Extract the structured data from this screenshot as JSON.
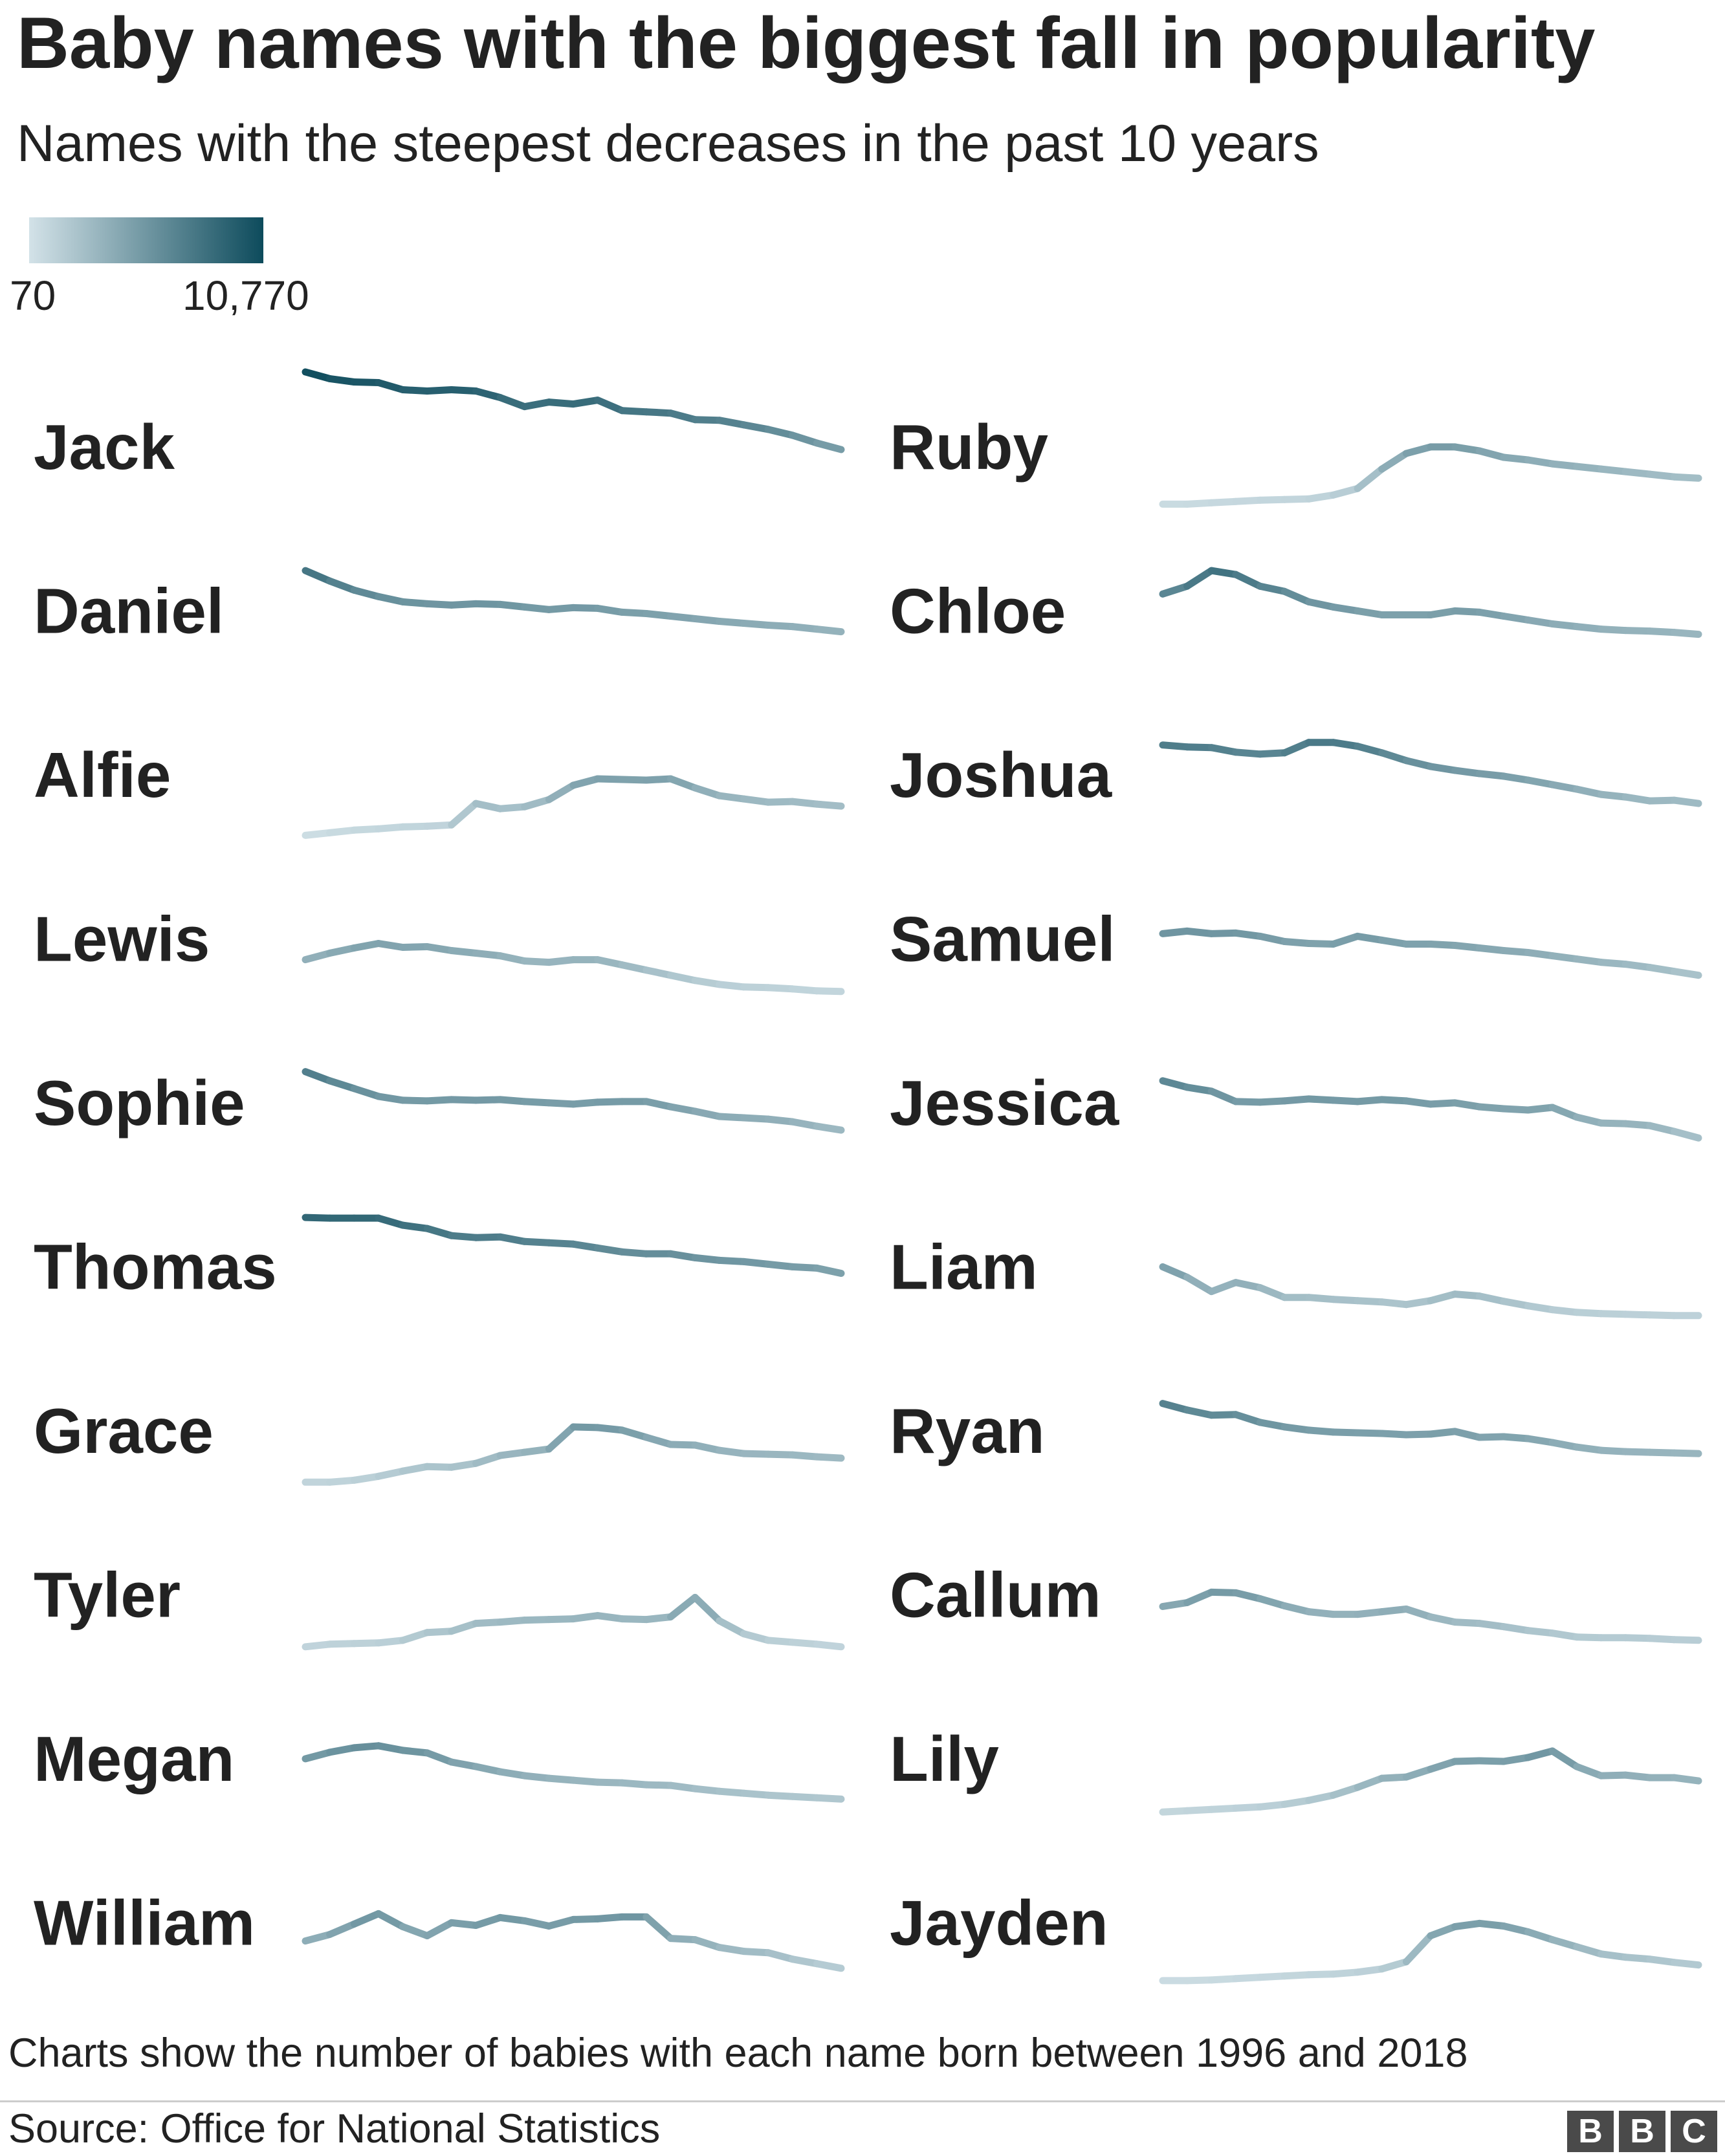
{
  "title": "Baby names with the biggest fall in popularity",
  "subtitle": "Names with the steepest decreases in the past 10 years",
  "legend": {
    "min_label": "70",
    "max_label": "10,770",
    "min_value": 70,
    "max_value": 10770,
    "color_low": "#d3e2e8",
    "color_high": "#0d4b5c"
  },
  "footnote": "Charts show the number of babies with each name born between 1996 and 2018",
  "source": "Source: Office for National Statistics",
  "logo": [
    "B",
    "B",
    "C"
  ],
  "chart_data": {
    "type": "line",
    "x": [
      1996,
      1997,
      1998,
      1999,
      2000,
      2001,
      2002,
      2003,
      2004,
      2005,
      2006,
      2007,
      2008,
      2009,
      2010,
      2011,
      2012,
      2013,
      2014,
      2015,
      2016,
      2017,
      2018
    ],
    "ylim": [
      70,
      10770
    ],
    "color_scale": "shared",
    "series": [
      {
        "name": "Jack",
        "values": [
          10770,
          10250,
          10000,
          9950,
          9400,
          9300,
          9400,
          9300,
          8800,
          8100,
          8450,
          8300,
          8600,
          7800,
          7700,
          7600,
          7100,
          7050,
          6700,
          6350,
          5900,
          5300,
          4800
        ]
      },
      {
        "name": "Ruby",
        "values": [
          600,
          600,
          700,
          800,
          900,
          950,
          1000,
          1300,
          1800,
          3300,
          4500,
          5000,
          5000,
          4700,
          4200,
          4000,
          3700,
          3500,
          3300,
          3100,
          2900,
          2700,
          2600
        ]
      },
      {
        "name": "Daniel",
        "values": [
          8100,
          7300,
          6600,
          6100,
          5700,
          5550,
          5450,
          5550,
          5500,
          5300,
          5100,
          5250,
          5200,
          4900,
          4800,
          4600,
          4400,
          4200,
          4050,
          3900,
          3800,
          3600,
          3400
        ]
      },
      {
        "name": "Chloe",
        "values": [
          6300,
          6900,
          8100,
          7800,
          6900,
          6500,
          5700,
          5300,
          5000,
          4700,
          4700,
          4700,
          5000,
          4900,
          4600,
          4300,
          4000,
          3800,
          3600,
          3500,
          3450,
          3350,
          3200
        ]
      },
      {
        "name": "Alfie",
        "values": [
          350,
          550,
          750,
          850,
          1000,
          1050,
          1150,
          2800,
          2400,
          2550,
          3100,
          4200,
          4700,
          4650,
          4600,
          4700,
          4000,
          3400,
          3150,
          2900,
          2950,
          2750,
          2600
        ]
      },
      {
        "name": "Joshua",
        "values": [
          7300,
          7150,
          7100,
          6750,
          6600,
          6700,
          7500,
          7500,
          7200,
          6700,
          6100,
          5650,
          5350,
          5100,
          4900,
          4600,
          4250,
          3900,
          3500,
          3300,
          3000,
          3050,
          2800
        ]
      },
      {
        "name": "Lewis",
        "values": [
          3400,
          3900,
          4300,
          4650,
          4350,
          4400,
          4100,
          3900,
          3700,
          3300,
          3200,
          3400,
          3400,
          3000,
          2600,
          2200,
          1800,
          1500,
          1300,
          1250,
          1150,
          1000,
          950
        ]
      },
      {
        "name": "Samuel",
        "values": [
          5400,
          5600,
          5400,
          5450,
          5200,
          4800,
          4650,
          4600,
          5200,
          4900,
          4600,
          4600,
          4500,
          4300,
          4100,
          3950,
          3700,
          3450,
          3200,
          3050,
          2800,
          2500,
          2200
        ]
      },
      {
        "name": "Sophie",
        "values": [
          7400,
          6700,
          6100,
          5500,
          5200,
          5150,
          5250,
          5200,
          5250,
          5100,
          5000,
          4900,
          5050,
          5100,
          5100,
          4700,
          4350,
          3950,
          3850,
          3750,
          3550,
          3200,
          2900
        ]
      },
      {
        "name": "Jessica",
        "values": [
          6700,
          6200,
          5900,
          5100,
          5050,
          5150,
          5300,
          5200,
          5100,
          5250,
          5150,
          4900,
          5000,
          4700,
          4550,
          4450,
          4650,
          3900,
          3450,
          3400,
          3250,
          2800,
          2300
        ]
      },
      {
        "name": "Thomas",
        "values": [
          8800,
          8750,
          8750,
          8750,
          8200,
          7950,
          7400,
          7250,
          7300,
          6950,
          6850,
          6750,
          6450,
          6150,
          6000,
          6000,
          5700,
          5500,
          5400,
          5200,
          5000,
          4900,
          4500
        ]
      },
      {
        "name": "Liam",
        "values": [
          5000,
          4200,
          3100,
          3800,
          3400,
          2650,
          2650,
          2500,
          2400,
          2300,
          2100,
          2400,
          2900,
          2750,
          2350,
          2000,
          1700,
          1500,
          1400,
          1350,
          1300,
          1250,
          1250
        ]
      },
      {
        "name": "Grace",
        "values": [
          1050,
          1050,
          1200,
          1500,
          1900,
          2250,
          2200,
          2500,
          3100,
          3350,
          3600,
          5300,
          5250,
          5050,
          4500,
          3950,
          3900,
          3500,
          3250,
          3200,
          3150,
          3000,
          2900
        ]
      },
      {
        "name": "Ryan",
        "values": [
          7100,
          6600,
          6200,
          6250,
          5650,
          5300,
          5050,
          4900,
          4850,
          4800,
          4700,
          4750,
          4950,
          4500,
          4550,
          4400,
          4100,
          3750,
          3500,
          3400,
          3350,
          3300,
          3250
        ]
      },
      {
        "name": "Tyler",
        "values": [
          1000,
          1200,
          1250,
          1300,
          1500,
          2100,
          2200,
          2800,
          2900,
          3050,
          3100,
          3150,
          3400,
          3150,
          3100,
          3300,
          4800,
          3000,
          2000,
          1500,
          1350,
          1200,
          1000
        ]
      },
      {
        "name": "Callum",
        "values": [
          4100,
          4400,
          5200,
          5150,
          4700,
          4150,
          3700,
          3500,
          3500,
          3700,
          3900,
          3300,
          2900,
          2800,
          2550,
          2250,
          2050,
          1750,
          1700,
          1700,
          1650,
          1550,
          1500
        ]
      },
      {
        "name": "Megan",
        "values": [
          5000,
          5500,
          5850,
          6000,
          5650,
          5450,
          4750,
          4400,
          4000,
          3700,
          3500,
          3350,
          3200,
          3150,
          3000,
          2950,
          2700,
          2500,
          2350,
          2200,
          2100,
          2000,
          1900
        ]
      },
      {
        "name": "Lily",
        "values": [
          900,
          1000,
          1100,
          1200,
          1300,
          1500,
          1800,
          2200,
          2800,
          3500,
          3600,
          4200,
          4800,
          4850,
          4800,
          5100,
          5600,
          4400,
          3700,
          3750,
          3550,
          3550,
          3300
        ]
      },
      {
        "name": "William",
        "values": [
          3600,
          4100,
          4900,
          5700,
          4700,
          4000,
          5000,
          4800,
          5400,
          5150,
          4750,
          5250,
          5300,
          5450,
          5450,
          3800,
          3700,
          3100,
          2800,
          2700,
          2200,
          1850,
          1500
        ]
      },
      {
        "name": "Jayden",
        "values": [
          550,
          550,
          600,
          700,
          800,
          900,
          1000,
          1050,
          1200,
          1450,
          2000,
          4000,
          4700,
          4950,
          4750,
          4300,
          3700,
          3150,
          2600,
          2350,
          2200,
          1950,
          1750
        ]
      }
    ]
  }
}
